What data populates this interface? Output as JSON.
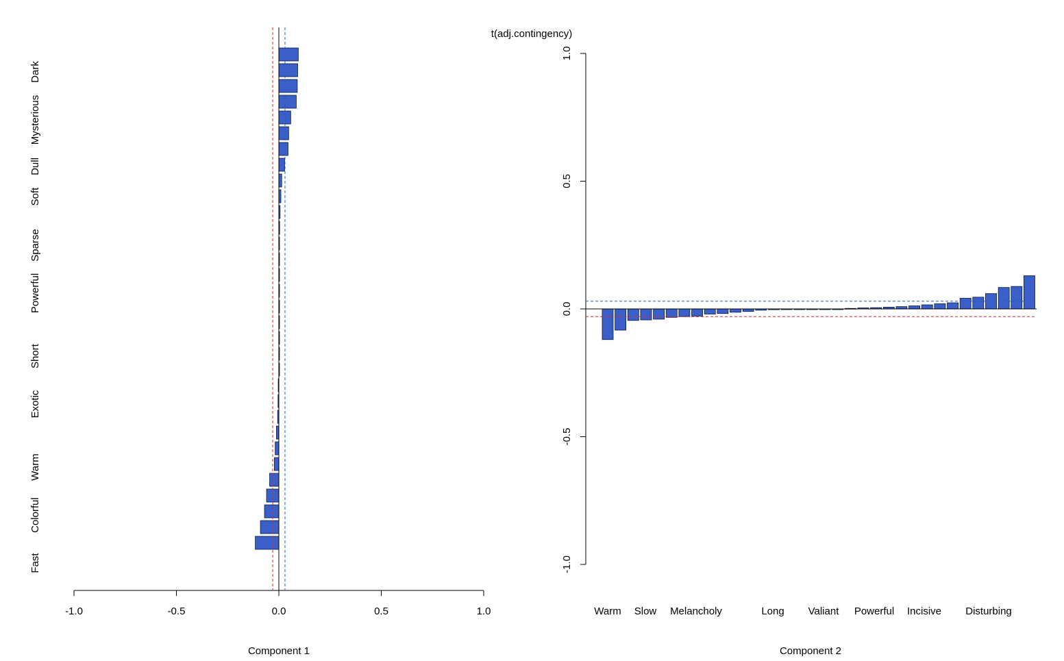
{
  "figure_title": "t(adj.contingency)",
  "colors": {
    "bar_fill": "#3A5FC8",
    "bar_stroke": "#0b1a3a",
    "threshold_red": "#d62728",
    "threshold_blue": "#1f5fb4",
    "axis": "#000000"
  },
  "chart_data": [
    {
      "type": "bar",
      "orientation": "horizontal",
      "xlabel": "Component 1",
      "ylabel": "",
      "xlim": [
        -1.0,
        1.0
      ],
      "xticks": [
        "-1.0",
        "-0.5",
        "0.0",
        "0.5",
        "1.0"
      ],
      "category_labels": [
        "Dark",
        "Mysterious",
        "Dull",
        "Soft",
        "Sparse",
        "Powerful",
        "Short",
        "Exotic",
        "Warm",
        "Colorful",
        "Fast"
      ],
      "values": [
        0.095,
        0.092,
        0.09,
        0.085,
        0.058,
        0.048,
        0.045,
        0.028,
        0.014,
        0.01,
        0.006,
        0.004,
        0.0,
        0.0,
        0.0,
        0.0,
        0.0,
        0.0,
        0.0,
        0.0,
        0.0,
        -0.003,
        -0.004,
        -0.006,
        -0.012,
        -0.018,
        -0.022,
        -0.045,
        -0.06,
        -0.07,
        -0.09,
        -0.115
      ],
      "thresholds": {
        "red": -0.03,
        "blue": 0.03
      },
      "grid": false
    },
    {
      "type": "bar",
      "orientation": "vertical",
      "xlabel": "Component 2",
      "ylabel": "",
      "ylim": [
        -1.0,
        1.0
      ],
      "yticks": [
        "-1.0",
        "-0.5",
        "0.0",
        "0.5",
        "1.0"
      ],
      "category_labels": [
        "Warm",
        "Slow",
        "Melancholy",
        "Long",
        "Valiant",
        "Powerful",
        "Incisive",
        "Disturbing"
      ],
      "values": [
        -0.12,
        -0.083,
        -0.045,
        -0.043,
        -0.04,
        -0.033,
        -0.03,
        -0.028,
        -0.02,
        -0.018,
        -0.013,
        -0.01,
        -0.005,
        -0.003,
        0.0,
        0.0,
        0.0,
        0.0,
        0.0,
        0.002,
        0.004,
        0.005,
        0.007,
        0.009,
        0.012,
        0.016,
        0.02,
        0.024,
        0.042,
        0.046,
        0.06,
        0.084,
        0.088,
        0.13
      ],
      "thresholds": {
        "red": -0.03,
        "blue": 0.03
      },
      "grid": false
    }
  ]
}
